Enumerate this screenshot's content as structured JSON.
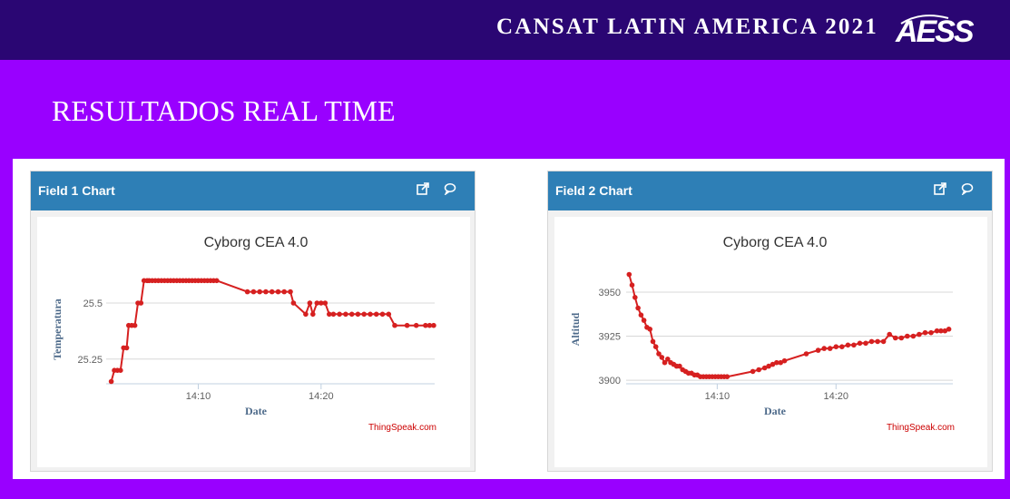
{
  "header": {
    "event_title": "CANSAT LATIN AMERICA 2021",
    "logo_text": "AESS"
  },
  "page": {
    "title": "RESULTADOS REAL TIME"
  },
  "cards": [
    {
      "header_title": "Field 1 Chart",
      "credit": "ThingSpeak.com",
      "icons": [
        "external-link-icon",
        "comment-icon"
      ]
    },
    {
      "header_title": "Field 2 Chart",
      "credit": "ThingSpeak.com",
      "icons": [
        "external-link-icon",
        "comment-icon"
      ]
    }
  ],
  "colors": {
    "series": "#d62020",
    "header_bar": "#2e7fb6",
    "top_bar": "#2a0673",
    "background": "#9900ff"
  },
  "chart_data": [
    {
      "type": "line",
      "title": "Cyborg CEA 4.0",
      "xlabel": "Date",
      "ylabel": "Temperatura",
      "x_ticks": [
        "14:10",
        "14:20"
      ],
      "y_ticks": [
        25.25,
        25.5
      ],
      "xlim": [
        "14:02:30",
        "14:29:15"
      ],
      "ylim": [
        25.14,
        25.69
      ],
      "grid": true,
      "series": [
        {
          "x": [
            "14:02:55",
            "14:03:10",
            "14:03:25",
            "14:03:40",
            "14:03:55",
            "14:04:10",
            "14:04:20",
            "14:04:35",
            "14:04:50",
            "14:05:05",
            "14:05:20",
            "14:05:35",
            "14:05:50",
            "14:06:00",
            "14:06:15",
            "14:06:30",
            "14:06:45",
            "14:07:00",
            "14:07:15",
            "14:07:30",
            "14:07:45",
            "14:08:00",
            "14:08:15",
            "14:08:30",
            "14:08:45",
            "14:09:00",
            "14:09:15",
            "14:09:30",
            "14:09:45",
            "14:10:00",
            "14:10:15",
            "14:10:30",
            "14:10:45",
            "14:11:00",
            "14:11:15",
            "14:11:30",
            "14:14:00",
            "14:14:30",
            "14:15:00",
            "14:15:30",
            "14:16:00",
            "14:16:30",
            "14:17:00",
            "14:17:30",
            "14:17:45",
            "14:18:45",
            "14:19:05",
            "14:19:20",
            "14:19:40",
            "14:20:00",
            "14:20:20",
            "14:20:40",
            "14:21:00",
            "14:21:30",
            "14:22:00",
            "14:22:30",
            "14:23:00",
            "14:23:30",
            "14:24:00",
            "14:24:30",
            "14:25:00",
            "14:25:30",
            "14:26:00",
            "14:27:00",
            "14:27:45",
            "14:28:30",
            "14:28:50",
            "14:29:10"
          ],
          "y": [
            25.15,
            25.2,
            25.2,
            25.2,
            25.3,
            25.3,
            25.4,
            25.4,
            25.4,
            25.5,
            25.5,
            25.6,
            25.6,
            25.6,
            25.6,
            25.6,
            25.6,
            25.6,
            25.6,
            25.6,
            25.6,
            25.6,
            25.6,
            25.6,
            25.6,
            25.6,
            25.6,
            25.6,
            25.6,
            25.6,
            25.6,
            25.6,
            25.6,
            25.6,
            25.6,
            25.6,
            25.55,
            25.55,
            25.55,
            25.55,
            25.55,
            25.55,
            25.55,
            25.55,
            25.5,
            25.45,
            25.5,
            25.45,
            25.5,
            25.5,
            25.5,
            25.45,
            25.45,
            25.45,
            25.45,
            25.45,
            25.45,
            25.45,
            25.45,
            25.45,
            25.45,
            25.45,
            25.4,
            25.4,
            25.4,
            25.4,
            25.4,
            25.4
          ]
        }
      ]
    },
    {
      "type": "line",
      "title": "Cyborg CEA 4.0",
      "xlabel": "Date",
      "ylabel": "Altitud",
      "x_ticks": [
        "14:10",
        "14:20"
      ],
      "y_ticks": [
        3900,
        3925,
        3950
      ],
      "xlim": [
        "14:02:20",
        "14:29:50"
      ],
      "ylim": [
        3898,
        3968
      ],
      "grid": true,
      "series": [
        {
          "x": [
            "14:02:35",
            "14:02:50",
            "14:03:05",
            "14:03:20",
            "14:03:35",
            "14:03:50",
            "14:04:05",
            "14:04:20",
            "14:04:35",
            "14:04:50",
            "14:05:05",
            "14:05:20",
            "14:05:35",
            "14:05:50",
            "14:06:05",
            "14:06:20",
            "14:06:35",
            "14:06:50",
            "14:07:05",
            "14:07:20",
            "14:07:35",
            "14:07:50",
            "14:08:05",
            "14:08:20",
            "14:08:35",
            "14:08:50",
            "14:09:05",
            "14:09:20",
            "14:09:35",
            "14:09:50",
            "14:10:05",
            "14:10:20",
            "14:10:35",
            "14:10:50",
            "14:13:00",
            "14:13:30",
            "14:14:00",
            "14:14:20",
            "14:14:40",
            "14:15:00",
            "14:15:20",
            "14:15:40",
            "14:17:30",
            "14:18:30",
            "14:19:00",
            "14:19:30",
            "14:20:00",
            "14:20:30",
            "14:21:00",
            "14:21:30",
            "14:22:00",
            "14:22:30",
            "14:23:00",
            "14:23:30",
            "14:24:00",
            "14:24:30",
            "14:25:00",
            "14:25:30",
            "14:26:00",
            "14:26:30",
            "14:27:00",
            "14:27:30",
            "14:28:00",
            "14:28:30",
            "14:28:50",
            "14:29:10",
            "14:29:30"
          ],
          "y": [
            3960,
            3954,
            3947,
            3941,
            3937,
            3934,
            3930,
            3929,
            3922,
            3919,
            3915,
            3913,
            3910,
            3912,
            3910,
            3909,
            3908,
            3908,
            3906,
            3905,
            3904,
            3904,
            3903,
            3903,
            3902,
            3902,
            3902,
            3902,
            3902,
            3902,
            3902,
            3902,
            3902,
            3902,
            3905,
            3906,
            3907,
            3908,
            3909,
            3910,
            3910,
            3911,
            3915,
            3917,
            3918,
            3918,
            3919,
            3919,
            3920,
            3920,
            3921,
            3921,
            3922,
            3922,
            3922,
            3926,
            3924,
            3924,
            3925,
            3925,
            3926,
            3927,
            3927,
            3928,
            3928,
            3928,
            3929
          ]
        }
      ]
    }
  ]
}
